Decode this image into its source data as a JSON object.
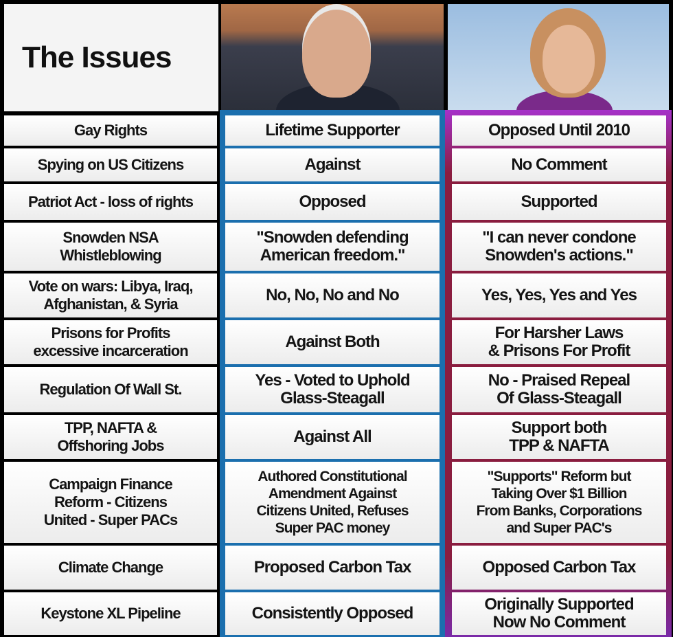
{
  "header": {
    "title": "The Issues"
  },
  "colors": {
    "sanders_border": "#1b6fae",
    "clinton_border_top": "#a531c9",
    "clinton_border": "#8a1d3f",
    "background": "#000000"
  },
  "rows": [
    {
      "issue": "Gay Rights",
      "sanders": "Lifetime Supporter",
      "clinton": "Opposed Until 2010"
    },
    {
      "issue": "Spying on US Citizens",
      "sanders": "Against",
      "clinton": "No Comment"
    },
    {
      "issue": "Patriot Act - loss of rights",
      "sanders": "Opposed",
      "clinton": "Supported"
    },
    {
      "issue": "Snowden NSA\nWhistleblowing",
      "sanders": "\"Snowden defending\nAmerican freedom.\"",
      "clinton": "\"I can never condone\nSnowden's actions.\""
    },
    {
      "issue": "Vote on wars: Libya, Iraq,\nAfghanistan, & Syria",
      "sanders": "No, No, No and No",
      "clinton": "Yes, Yes, Yes and Yes"
    },
    {
      "issue": "Prisons for Profits\nexcessive incarceration",
      "sanders": "Against Both",
      "clinton": "For Harsher Laws\n& Prisons For Profit"
    },
    {
      "issue": "Regulation Of Wall St.",
      "sanders": "Yes - Voted to Uphold\nGlass-Steagall",
      "clinton": "No - Praised Repeal\nOf Glass-Steagall"
    },
    {
      "issue": "TPP, NAFTA &\nOffshoring Jobs",
      "sanders": "Against All",
      "clinton": "Support both\nTPP & NAFTA"
    },
    {
      "issue": "Campaign Finance\nReform - Citizens\nUnited - Super PACs",
      "sanders": "Authored Constitutional\nAmendment Against\nCitizens United, Refuses\nSuper PAC money",
      "clinton": "\"Supports\" Reform but\nTaking Over $1 Billion\nFrom Banks, Corporations\nand Super PAC's"
    },
    {
      "issue": "Climate Change",
      "sanders": "Proposed Carbon Tax",
      "clinton": "Opposed Carbon Tax"
    },
    {
      "issue": "Keystone XL Pipeline",
      "sanders": "Consistently Opposed",
      "clinton": "Originally Supported\nNow No Comment"
    }
  ]
}
